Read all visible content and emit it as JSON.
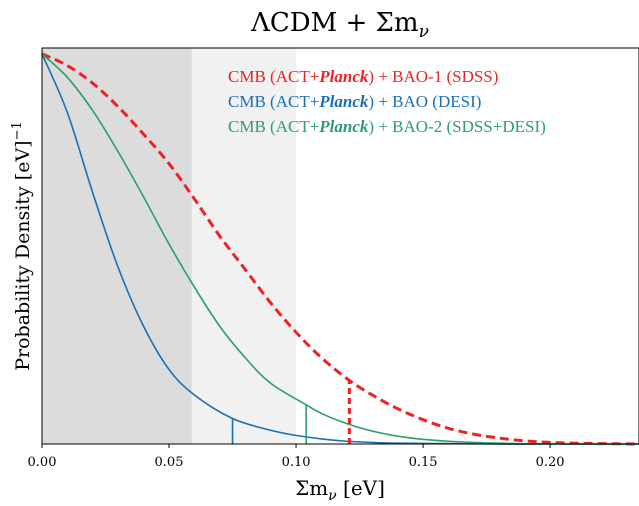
{
  "chart_data": {
    "type": "line",
    "title": "ΛCDM + Σm",
    "title_sub": "ν",
    "xlabel": "Σm",
    "xlabel_sub": "ν",
    "xlabel_unit": " [eV]",
    "ylabel": "Probability Density [eV]",
    "ylabel_sup": "−1",
    "xlim": [
      0.0,
      0.235
    ],
    "ylim": [
      0.0,
      1.01
    ],
    "x_ticks": [
      0.0,
      0.05,
      0.1,
      0.15,
      0.2
    ],
    "x_tick_labels": [
      "0.00",
      "0.05",
      "0.10",
      "0.15",
      "0.20"
    ],
    "y_ticks_shown": false,
    "grid": false,
    "legend_position": "top-right",
    "shaded_regions": [
      {
        "x_from": 0.0,
        "x_to": 0.059,
        "color": "#dcdcdc"
      },
      {
        "x_from": 0.059,
        "x_to": 0.1,
        "color": "#f1f1f1"
      }
    ],
    "series": [
      {
        "name_parts": [
          "CMB (ACT+",
          "Planck",
          ") + BAO-1 (SDSS)"
        ],
        "color": "#ee2222",
        "dashed": true,
        "upper_limit_x": 0.121,
        "x": [
          0.0,
          0.01,
          0.02,
          0.03,
          0.04,
          0.05,
          0.06,
          0.07,
          0.08,
          0.09,
          0.1,
          0.11,
          0.121,
          0.13,
          0.14,
          0.15,
          0.16,
          0.17,
          0.18,
          0.19,
          0.2,
          0.21,
          0.22,
          0.235
        ],
        "y": [
          0.995,
          0.965,
          0.92,
          0.86,
          0.79,
          0.715,
          0.625,
          0.53,
          0.445,
          0.36,
          0.285,
          0.22,
          0.162,
          0.125,
          0.09,
          0.062,
          0.04,
          0.025,
          0.015,
          0.008,
          0.004,
          0.002,
          0.001,
          0.0
        ]
      },
      {
        "name_parts": [
          "CMB (ACT+",
          "Planck",
          ") + BAO (DESI)"
        ],
        "color": "#1a6fb5",
        "dashed": false,
        "upper_limit_x": 0.075,
        "x": [
          0.0,
          0.01,
          0.02,
          0.03,
          0.04,
          0.05,
          0.06,
          0.075,
          0.09,
          0.1,
          0.11,
          0.12,
          0.13,
          0.14,
          0.16,
          0.18,
          0.2,
          0.235
        ],
        "y": [
          0.995,
          0.845,
          0.64,
          0.45,
          0.3,
          0.19,
          0.125,
          0.065,
          0.035,
          0.022,
          0.013,
          0.007,
          0.004,
          0.002,
          0.001,
          0.0,
          0.0,
          0.0
        ]
      },
      {
        "name_parts": [
          "CMB (ACT+",
          "Planck",
          ") + BAO-2 (SDSS+DESI)"
        ],
        "color": "#2b9e6b",
        "dashed": false,
        "upper_limit_x": 0.104,
        "x": [
          0.0,
          0.01,
          0.02,
          0.03,
          0.04,
          0.05,
          0.06,
          0.07,
          0.08,
          0.09,
          0.104,
          0.11,
          0.12,
          0.13,
          0.14,
          0.15,
          0.16,
          0.18,
          0.2,
          0.235
        ],
        "y": [
          0.995,
          0.935,
          0.85,
          0.745,
          0.63,
          0.51,
          0.4,
          0.3,
          0.22,
          0.155,
          0.1,
          0.078,
          0.052,
          0.033,
          0.02,
          0.012,
          0.007,
          0.002,
          0.0,
          0.0
        ]
      }
    ]
  }
}
